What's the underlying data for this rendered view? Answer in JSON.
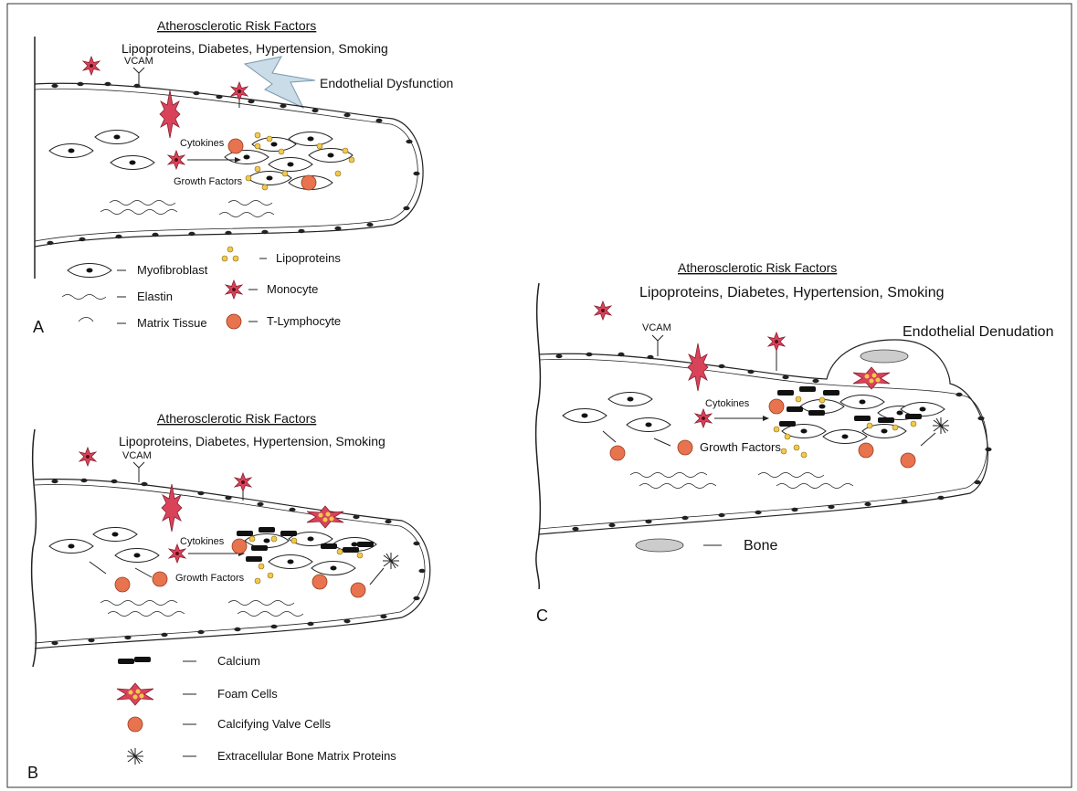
{
  "panels": {
    "A": {
      "letter": "A",
      "heading": "Atherosclerotic Risk Factors",
      "risk_factors": "Lipoproteins, Diabetes, Hypertension, Smoking",
      "vcam": "VCAM",
      "event": "Endothelial Dysfunction",
      "cytokines": "Cytokines",
      "growth_factors": "Growth Factors"
    },
    "B": {
      "letter": "B",
      "heading": "Atherosclerotic Risk Factors",
      "risk_factors": "Lipoproteins, Diabetes, Hypertension, Smoking",
      "vcam": "VCAM",
      "cytokines": "Cytokines",
      "growth_factors": "Growth Factors"
    },
    "C": {
      "letter": "C",
      "heading": "Atherosclerotic Risk Factors",
      "risk_factors": "Lipoproteins, Diabetes, Hypertension, Smoking",
      "vcam": "VCAM",
      "event": "Endothelial Denudation",
      "cytokines": "Cytokines",
      "growth_factors": "Growth Factors"
    }
  },
  "legend_a": {
    "myofibroblast": "Myofibroblast",
    "elastin": "Elastin",
    "matrix_tissue": "Matrix Tissue",
    "lipoproteins": "Lipoproteins",
    "monocyte": "Monocyte",
    "t_lymphocyte": "T-Lymphocyte"
  },
  "legend_b": {
    "calcium": "Calcium",
    "foam_cells": "Foam Cells",
    "calcifying_valve_cells": "Calcifying Valve Cells",
    "bone_matrix_proteins": "Extracellular Bone Matrix Proteins"
  },
  "legend_c": {
    "bone": "Bone"
  },
  "colors": {
    "monocyte": "#d9435a",
    "t_lymphocyte": "#e8734f",
    "lipoprotein": "#f2c94c",
    "calcium": "#111111",
    "bone": "#cccccc",
    "lightning": "#c9dce8"
  }
}
